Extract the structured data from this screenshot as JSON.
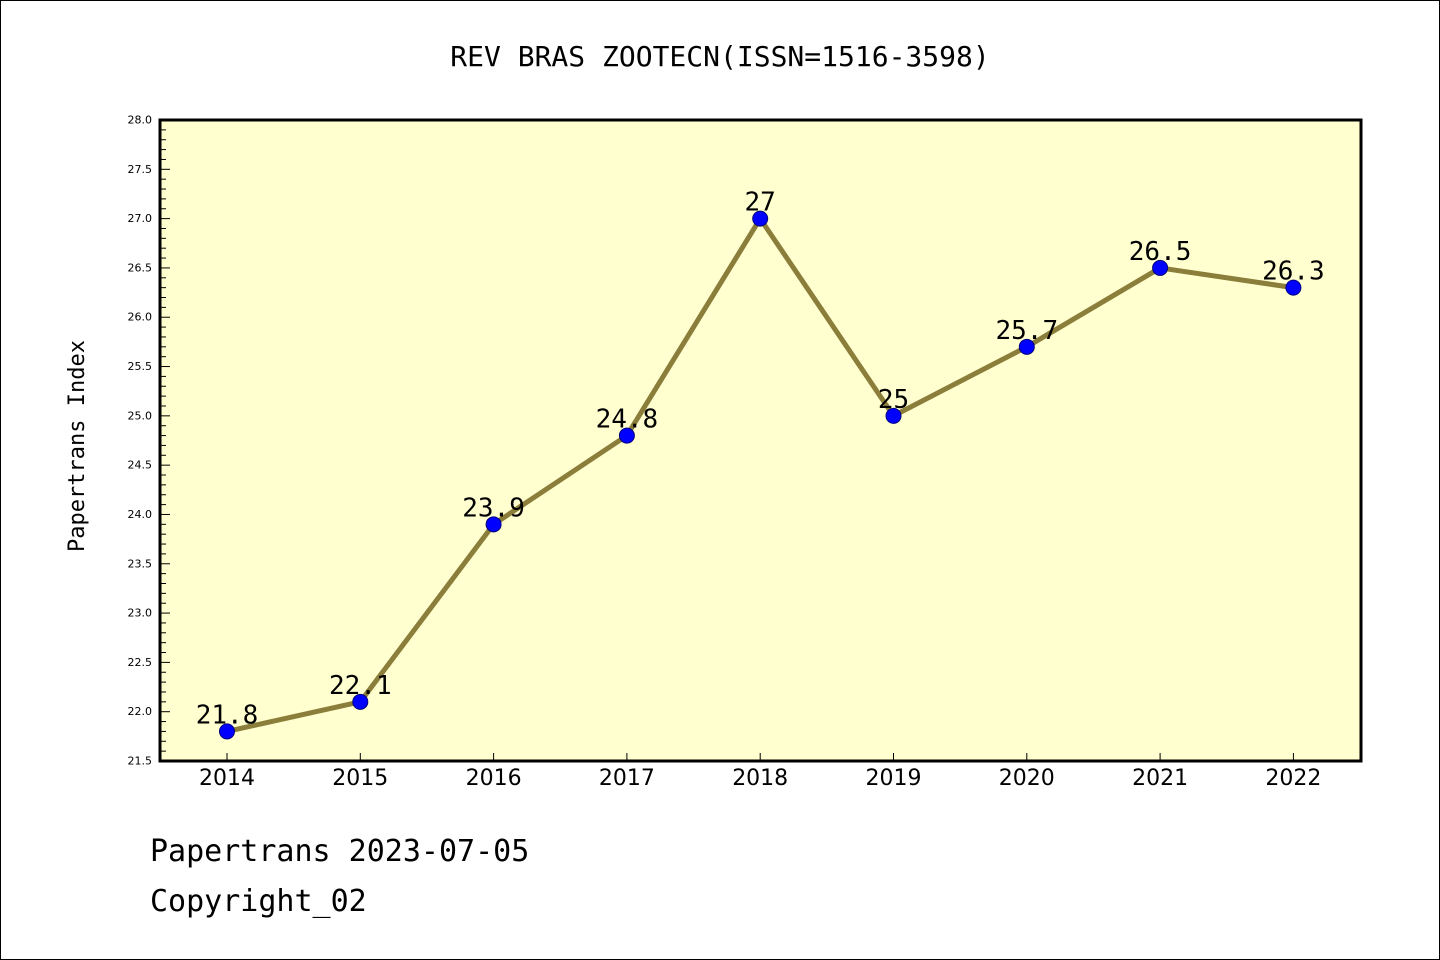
{
  "chart_data": {
    "type": "line",
    "title": "REV BRAS ZOOTECN(ISSN=1516-3598)",
    "xlabel": "",
    "ylabel": "Papertrans Index",
    "categories": [
      "2014",
      "2015",
      "2016",
      "2017",
      "2018",
      "2019",
      "2020",
      "2021",
      "2022"
    ],
    "series": [
      {
        "values": [
          21.8,
          22.1,
          23.9,
          24.8,
          27,
          25,
          25.7,
          26.5,
          26.3
        ],
        "data_labels": [
          "21.8",
          "22.1",
          "23.9",
          "24.8",
          "27",
          "25",
          "25.7",
          "26.5",
          "26.3"
        ]
      }
    ],
    "ylim": [
      21.5,
      28.0
    ],
    "yticks": [
      "21.5",
      "22.0",
      "22.5",
      "23.0",
      "23.5",
      "24.0",
      "24.5",
      "25.0",
      "25.5",
      "26.0",
      "26.5",
      "27.0",
      "27.5",
      "28.0"
    ],
    "grid": false,
    "legend": "none",
    "colors": {
      "plot_background": "#ffffd0",
      "line": "#8b7d3a",
      "marker": "#0000ff",
      "marker_edge": "#000080"
    }
  },
  "footer": {
    "line1": "Papertrans 2023-07-05",
    "line2": "Copyright_02"
  }
}
